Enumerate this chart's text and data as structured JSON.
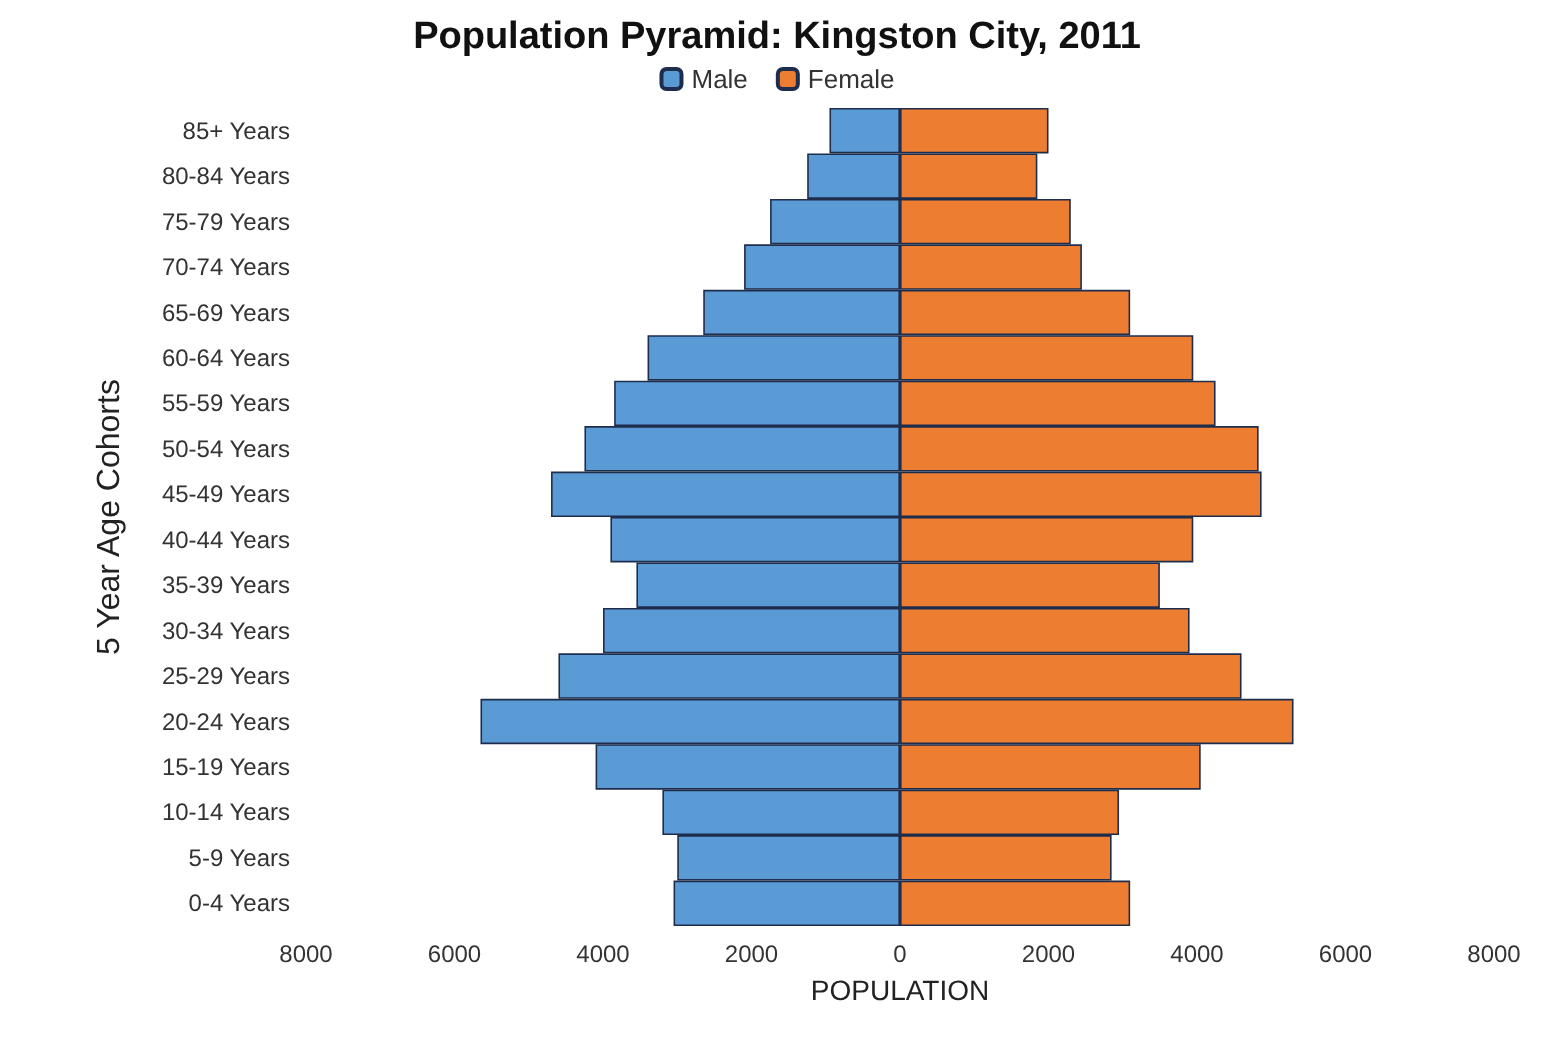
{
  "chart_data": {
    "type": "bar",
    "orientation": "horizontal",
    "stacked": true,
    "title": "Population Pyramid: Kingston City, 2011",
    "xlabel": "POPULATION",
    "ylabel": "5 Year Age Cohorts",
    "categories": [
      "85+ Years",
      "80-84 Years",
      "75-79 Years",
      "70-74 Years",
      "65-69 Years",
      "60-64 Years",
      "55-59 Years",
      "50-54 Years",
      "45-49 Years",
      "40-44 Years",
      "35-39 Years",
      "30-34 Years",
      "25-29 Years",
      "20-24 Years",
      "15-19 Years",
      "10-14 Years",
      "5-9 Years",
      "0-4 Years"
    ],
    "series": [
      {
        "name": "Male",
        "color": "#5b9bd5",
        "values": [
          -950,
          -1250,
          -1750,
          -2100,
          -2650,
          -3400,
          -3850,
          -4250,
          -4700,
          -3900,
          -3550,
          -4000,
          -4600,
          -5650,
          -4100,
          -3200,
          -3000,
          -3050
        ]
      },
      {
        "name": "Female",
        "color": "#ed7d31",
        "values": [
          2000,
          1850,
          2300,
          2450,
          3100,
          3950,
          4250,
          4830,
          4870,
          3950,
          3500,
          3900,
          4600,
          5300,
          4050,
          2950,
          2850,
          3100
        ]
      }
    ],
    "xlim": [
      -8000,
      8000
    ],
    "xticks": [
      {
        "value": -8000,
        "label": "8000"
      },
      {
        "value": -6000,
        "label": "6000"
      },
      {
        "value": -4000,
        "label": "4000"
      },
      {
        "value": -2000,
        "label": "2000"
      },
      0,
      2000,
      4000,
      6000,
      8000
    ],
    "legend": "top",
    "grid": false
  }
}
